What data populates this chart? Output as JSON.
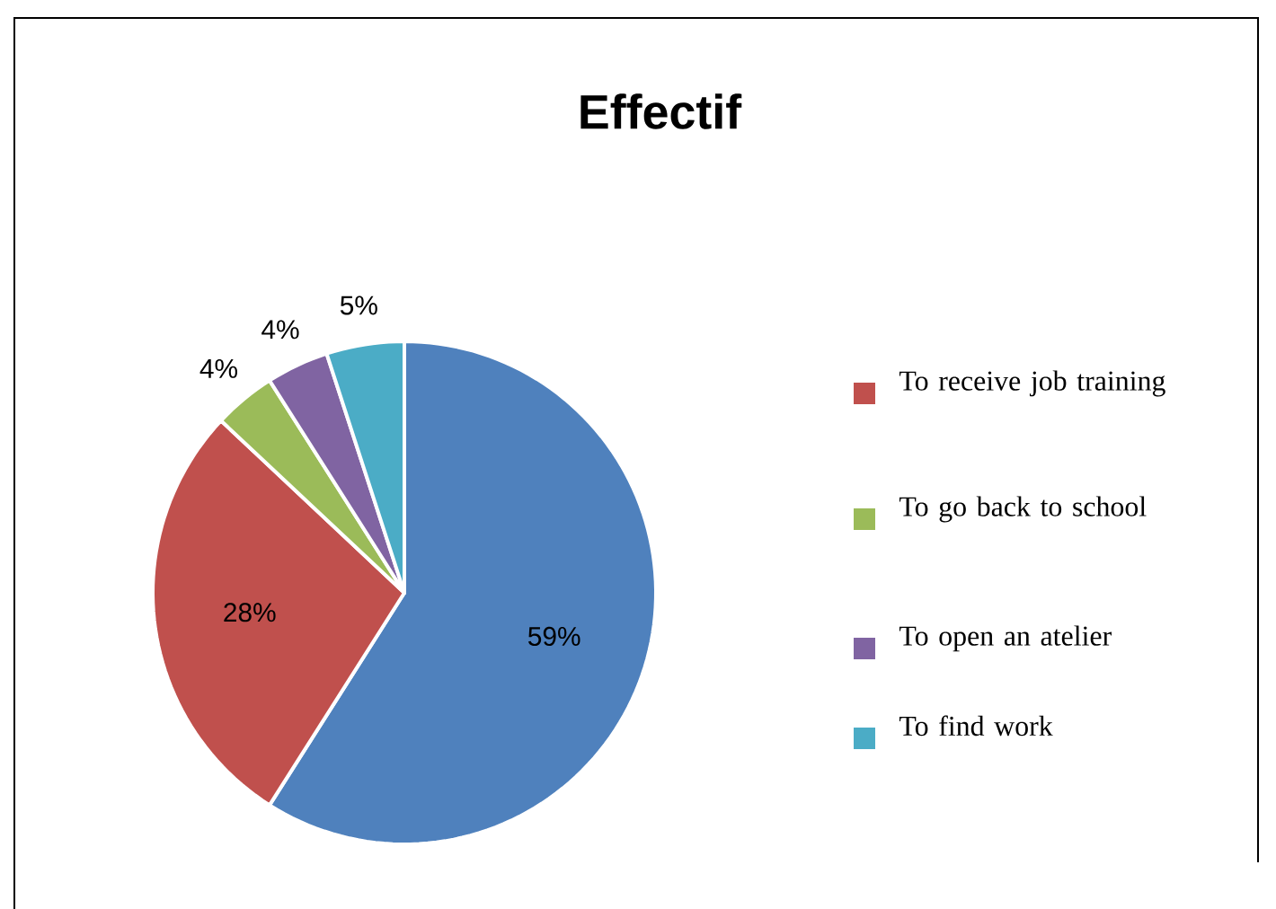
{
  "chart_data": {
    "type": "pie",
    "title": "Effectif",
    "categories": [
      null,
      "To receive job training",
      "To go back to school",
      "To open an atelier",
      "To find work"
    ],
    "values": [
      59,
      28,
      4,
      4,
      5
    ],
    "value_labels": [
      "59%",
      "28%",
      "4%",
      "4%",
      "5%"
    ],
    "colors": [
      "#4f81bd",
      "#c0504d",
      "#9bbb59",
      "#8064a2",
      "#4bacc6"
    ],
    "legend": "right"
  }
}
